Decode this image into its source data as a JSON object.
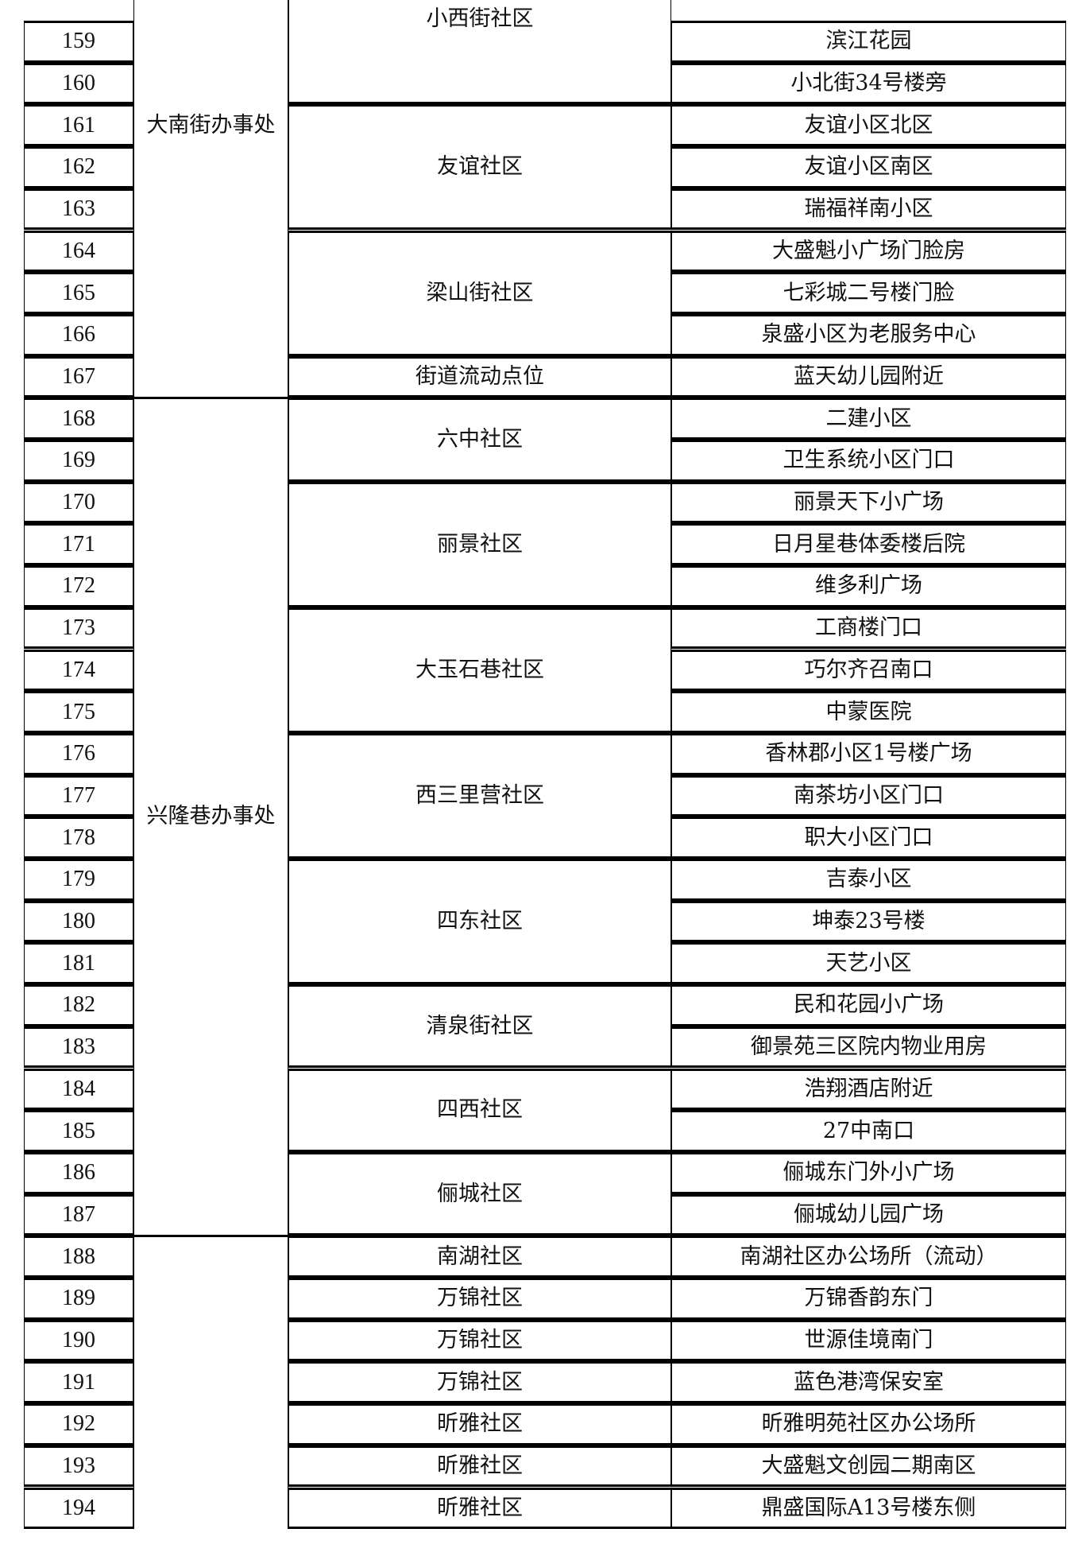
{
  "rows": [
    {
      "no": "159",
      "location": "滨江花园"
    },
    {
      "no": "160",
      "location": "小北街34号楼旁"
    },
    {
      "no": "161",
      "location": "友谊小区北区"
    },
    {
      "no": "162",
      "location": "友谊小区南区"
    },
    {
      "no": "163",
      "location": "瑞福祥南小区"
    },
    {
      "no": "164",
      "location": "大盛魁小广场门脸房"
    },
    {
      "no": "165",
      "location": "七彩城二号楼门脸"
    },
    {
      "no": "166",
      "location": "泉盛小区为老服务中心"
    },
    {
      "no": "167",
      "location": "蓝天幼儿园附近"
    },
    {
      "no": "168",
      "location": "二建小区"
    },
    {
      "no": "169",
      "location": "卫生系统小区门口"
    },
    {
      "no": "170",
      "location": "丽景天下小广场"
    },
    {
      "no": "171",
      "location": "日月星巷体委楼后院"
    },
    {
      "no": "172",
      "location": "维多利广场"
    },
    {
      "no": "173",
      "location": "工商楼门口"
    },
    {
      "no": "174",
      "location": "巧尔齐召南口"
    },
    {
      "no": "175",
      "location": "中蒙医院"
    },
    {
      "no": "176",
      "location": "香林郡小区1号楼广场"
    },
    {
      "no": "177",
      "location": "南茶坊小区门口"
    },
    {
      "no": "178",
      "location": "职大小区门口"
    },
    {
      "no": "179",
      "location": "吉泰小区"
    },
    {
      "no": "180",
      "location": "坤泰23号楼"
    },
    {
      "no": "181",
      "location": "天艺小区"
    },
    {
      "no": "182",
      "location": "民和花园小广场"
    },
    {
      "no": "183",
      "location": "御景苑三区院内物业用房"
    },
    {
      "no": "184",
      "location": "浩翔酒店附近"
    },
    {
      "no": "185",
      "location": "27中南口"
    },
    {
      "no": "186",
      "location": "俪城东门外小广场"
    },
    {
      "no": "187",
      "location": "俪城幼儿园广场"
    },
    {
      "no": "188",
      "location": "南湖社区办公场所（流动）"
    },
    {
      "no": "189",
      "location": "万锦香韵东门"
    },
    {
      "no": "190",
      "location": "世源佳境南门"
    },
    {
      "no": "191",
      "location": "蓝色港湾保安室"
    },
    {
      "no": "192",
      "location": "昕雅明苑社区办公场所"
    },
    {
      "no": "193",
      "location": "大盛魁文创园二期南区"
    },
    {
      "no": "194",
      "location": "鼎盛国际A13号楼东侧"
    }
  ],
  "offices": [
    {
      "name": "大南街办事处",
      "first": "159",
      "last": "167",
      "continues_above": true
    },
    {
      "name": "兴隆巷办事处",
      "first": "168",
      "last": "187"
    },
    {
      "name": "",
      "first": "188",
      "last": "194"
    }
  ],
  "communities": [
    {
      "name": "小西街社区",
      "first": "159",
      "last": "160",
      "continues_above": true
    },
    {
      "name": "友谊社区",
      "first": "161",
      "last": "163"
    },
    {
      "name": "梁山街社区",
      "first": "164",
      "last": "166"
    },
    {
      "name": "街道流动点位",
      "first": "167",
      "last": "167"
    },
    {
      "name": "六中社区",
      "first": "168",
      "last": "169"
    },
    {
      "name": "丽景社区",
      "first": "170",
      "last": "172"
    },
    {
      "name": "大玉石巷社区",
      "first": "173",
      "last": "175"
    },
    {
      "name": "西三里营社区",
      "first": "176",
      "last": "178"
    },
    {
      "name": "四东社区",
      "first": "179",
      "last": "181"
    },
    {
      "name": "清泉街社区",
      "first": "182",
      "last": "183"
    },
    {
      "name": "四西社区",
      "first": "184",
      "last": "185"
    },
    {
      "name": "俪城社区",
      "first": "186",
      "last": "187"
    },
    {
      "name": "南湖社区",
      "first": "188",
      "last": "188"
    },
    {
      "name": "万锦社区",
      "first": "189",
      "last": "189"
    },
    {
      "name": "万锦社区",
      "first": "190",
      "last": "190"
    },
    {
      "name": "万锦社区",
      "first": "191",
      "last": "191"
    },
    {
      "name": "昕雅社区",
      "first": "192",
      "last": "192"
    },
    {
      "name": "昕雅社区",
      "first": "193",
      "last": "193"
    },
    {
      "name": "昕雅社区",
      "first": "194",
      "last": "194"
    }
  ]
}
